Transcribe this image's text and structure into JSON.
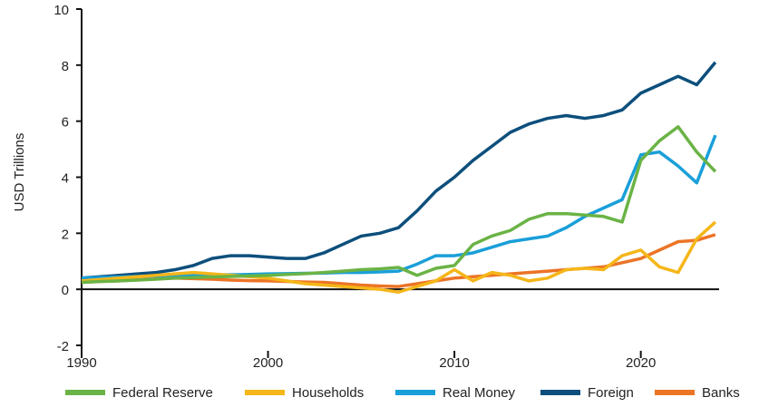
{
  "chart_data": {
    "type": "line",
    "y_label": "USD Trillions",
    "x": [
      1990,
      1991,
      1992,
      1993,
      1994,
      1995,
      1996,
      1997,
      1998,
      1999,
      2000,
      2001,
      2002,
      2003,
      2004,
      2005,
      2006,
      2007,
      2008,
      2009,
      2010,
      2011,
      2012,
      2013,
      2014,
      2015,
      2016,
      2017,
      2018,
      2019,
      2020,
      2021,
      2022,
      2023,
      2024
    ],
    "series": [
      {
        "name": "Federal Reserve",
        "color": "#6ab345",
        "values": [
          0.25,
          0.28,
          0.3,
          0.33,
          0.36,
          0.4,
          0.42,
          0.44,
          0.46,
          0.48,
          0.5,
          0.53,
          0.56,
          0.6,
          0.65,
          0.7,
          0.73,
          0.78,
          0.5,
          0.75,
          0.85,
          1.6,
          1.9,
          2.1,
          2.5,
          2.7,
          2.7,
          2.65,
          2.6,
          2.4,
          4.6,
          5.3,
          5.8,
          4.9,
          4.2
        ]
      },
      {
        "name": "Households",
        "color": "#f5b619",
        "values": [
          0.3,
          0.35,
          0.4,
          0.45,
          0.5,
          0.55,
          0.6,
          0.55,
          0.5,
          0.45,
          0.4,
          0.3,
          0.2,
          0.15,
          0.1,
          0.05,
          0.0,
          -0.1,
          0.1,
          0.3,
          0.7,
          0.3,
          0.6,
          0.5,
          0.3,
          0.4,
          0.7,
          0.75,
          0.7,
          1.2,
          1.4,
          0.8,
          0.6,
          1.8,
          2.4
        ]
      },
      {
        "name": "Real Money",
        "color": "#1a9fd9",
        "values": [
          0.4,
          0.42,
          0.44,
          0.46,
          0.48,
          0.5,
          0.5,
          0.52,
          0.52,
          0.53,
          0.55,
          0.56,
          0.57,
          0.58,
          0.6,
          0.6,
          0.62,
          0.65,
          0.9,
          1.2,
          1.2,
          1.3,
          1.5,
          1.7,
          1.8,
          1.9,
          2.2,
          2.6,
          2.9,
          3.2,
          4.8,
          4.9,
          4.4,
          3.8,
          5.5
        ]
      },
      {
        "name": "Foreign",
        "color": "#0d4f7c",
        "values": [
          0.4,
          0.45,
          0.5,
          0.55,
          0.6,
          0.7,
          0.85,
          1.1,
          1.2,
          1.2,
          1.15,
          1.1,
          1.1,
          1.3,
          1.6,
          1.9,
          2.0,
          2.2,
          2.8,
          3.5,
          4.0,
          4.6,
          5.1,
          5.6,
          5.9,
          6.1,
          6.2,
          6.1,
          6.2,
          6.4,
          7.0,
          7.3,
          7.6,
          7.3,
          8.1
        ]
      },
      {
        "name": "Banks",
        "color": "#ec7426",
        "values": [
          0.25,
          0.28,
          0.3,
          0.34,
          0.37,
          0.4,
          0.38,
          0.36,
          0.33,
          0.31,
          0.3,
          0.28,
          0.26,
          0.25,
          0.2,
          0.15,
          0.12,
          0.1,
          0.2,
          0.3,
          0.4,
          0.45,
          0.5,
          0.55,
          0.6,
          0.65,
          0.7,
          0.75,
          0.8,
          0.95,
          1.1,
          1.4,
          1.7,
          1.75,
          1.95
        ]
      }
    ],
    "xlim": [
      1990,
      2024.2
    ],
    "xticks": [
      1990,
      2000,
      2010,
      2020
    ],
    "ylim": [
      -2,
      10
    ],
    "yticks": [
      -2,
      0,
      2,
      4,
      6,
      8,
      10
    ]
  }
}
